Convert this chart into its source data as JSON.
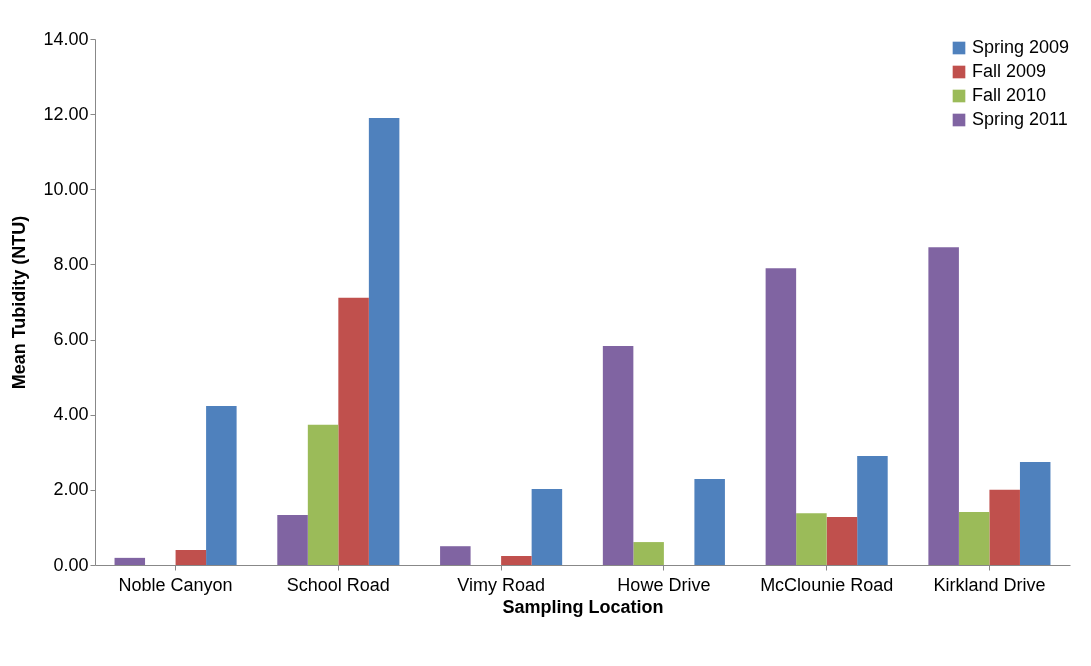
{
  "chart_data": {
    "type": "bar",
    "xlabel": "Sampling Location",
    "ylabel": "Mean Tubidity (NTU)",
    "categories": [
      "Noble Canyon",
      "School Road",
      "Vimy Road",
      "Howe Drive",
      "McClounie Road",
      "Kirkland Drive"
    ],
    "series": [
      {
        "name": "Spring 2009",
        "color": "#4f81bd",
        "values": [
          4.23,
          11.9,
          2.02,
          2.29,
          2.9,
          2.74
        ]
      },
      {
        "name": "Fall 2009",
        "color": "#c0504d",
        "values": [
          0.4,
          7.11,
          0.24,
          null,
          1.28,
          2.0
        ]
      },
      {
        "name": "Fall 2010",
        "color": "#9bbb59",
        "values": [
          null,
          3.73,
          null,
          0.61,
          1.38,
          1.41
        ]
      },
      {
        "name": "Spring 2011",
        "color": "#8064a2",
        "values": [
          0.19,
          1.33,
          0.5,
          5.83,
          7.9,
          8.46
        ]
      }
    ],
    "ylim": [
      0,
      14
    ],
    "yticks": [
      {
        "value": 0,
        "label": "0.00"
      },
      {
        "value": 2,
        "label": "2.00"
      },
      {
        "value": 4,
        "label": "4.00"
      },
      {
        "value": 6,
        "label": "6.00"
      },
      {
        "value": 8,
        "label": "8.00"
      },
      {
        "value": 10,
        "label": "10.00"
      },
      {
        "value": 12,
        "label": "12.00"
      },
      {
        "value": 14,
        "label": "14.00"
      }
    ],
    "grid": false,
    "legend": "top right"
  }
}
